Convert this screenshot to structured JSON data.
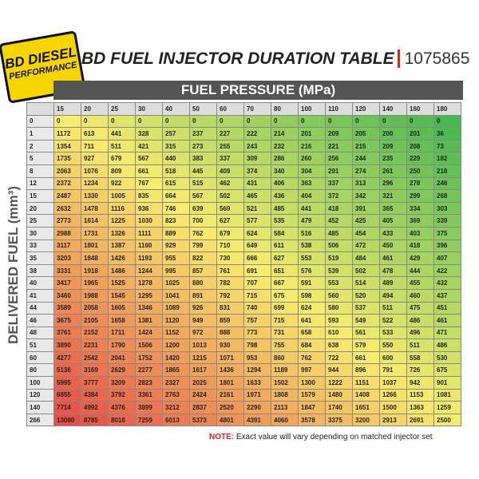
{
  "logo": {
    "line1": "BD DIESEL",
    "line2": "PERFORMANCE"
  },
  "header": {
    "title": "BD FUEL INJECTOR DURATION TABLE",
    "part_number": "1075865"
  },
  "table": {
    "column_title": "FUEL PRESSURE (MPa)",
    "row_title": "DELIVERED FUEL (mm³)",
    "columns": [
      "15",
      "20",
      "25",
      "30",
      "40",
      "50",
      "60",
      "70",
      "80",
      "100",
      "110",
      "120",
      "140",
      "160",
      "180"
    ],
    "row_labels": [
      "0",
      "1",
      "2",
      "5",
      "8",
      "12",
      "15",
      "20",
      "25",
      "30",
      "33",
      "35",
      "38",
      "40",
      "41",
      "44",
      "46",
      "48",
      "51",
      "60",
      "80",
      "100",
      "120",
      "140",
      "266"
    ],
    "rows": [
      [
        "0",
        "0",
        "0",
        "0",
        "0",
        "0",
        "0",
        "0",
        "0",
        "0",
        "0",
        "0",
        "0",
        "0",
        "0"
      ],
      [
        "1172",
        "613",
        "441",
        "328",
        "257",
        "237",
        "227",
        "222",
        "214",
        "201",
        "209",
        "205",
        "200",
        "201",
        "36"
      ],
      [
        "1354",
        "711",
        "511",
        "421",
        "315",
        "273",
        "255",
        "243",
        "232",
        "216",
        "221",
        "215",
        "209",
        "208",
        "73"
      ],
      [
        "1735",
        "927",
        "679",
        "567",
        "440",
        "383",
        "337",
        "309",
        "286",
        "260",
        "256",
        "244",
        "235",
        "229",
        "182"
      ],
      [
        "2063",
        "1076",
        "809",
        "661",
        "518",
        "445",
        "409",
        "374",
        "340",
        "304",
        "291",
        "274",
        "261",
        "250",
        "218"
      ],
      [
        "2372",
        "1234",
        "922",
        "767",
        "615",
        "515",
        "462",
        "431",
        "406",
        "363",
        "337",
        "313",
        "296",
        "278",
        "246"
      ],
      [
        "2487",
        "1330",
        "1005",
        "835",
        "664",
        "567",
        "502",
        "465",
        "436",
        "404",
        "372",
        "342",
        "321",
        "299",
        "268"
      ],
      [
        "2632",
        "1478",
        "1116",
        "936",
        "746",
        "639",
        "569",
        "521",
        "485",
        "441",
        "418",
        "391",
        "365",
        "334",
        "303"
      ],
      [
        "2773",
        "1614",
        "1225",
        "1030",
        "823",
        "700",
        "627",
        "577",
        "535",
        "479",
        "452",
        "425",
        "405",
        "369",
        "339"
      ],
      [
        "2988",
        "1731",
        "1326",
        "1111",
        "889",
        "762",
        "679",
        "624",
        "584",
        "516",
        "485",
        "454",
        "433",
        "403",
        "375"
      ],
      [
        "3117",
        "1801",
        "1387",
        "1160",
        "929",
        "799",
        "710",
        "649",
        "611",
        "538",
        "506",
        "472",
        "450",
        "418",
        "396"
      ],
      [
        "3203",
        "1848",
        "1426",
        "1193",
        "955",
        "822",
        "730",
        "666",
        "627",
        "553",
        "519",
        "484",
        "461",
        "429",
        "407"
      ],
      [
        "3331",
        "1918",
        "1486",
        "1244",
        "995",
        "857",
        "761",
        "691",
        "651",
        "576",
        "539",
        "502",
        "478",
        "444",
        "422"
      ],
      [
        "3417",
        "1965",
        "1525",
        "1278",
        "1025",
        "880",
        "782",
        "707",
        "667",
        "591",
        "553",
        "514",
        "489",
        "455",
        "432"
      ],
      [
        "3460",
        "1988",
        "1545",
        "1295",
        "1041",
        "891",
        "792",
        "715",
        "675",
        "598",
        "560",
        "520",
        "494",
        "460",
        "437"
      ],
      [
        "3589",
        "2058",
        "1605",
        "1346",
        "1089",
        "926",
        "831",
        "740",
        "699",
        "624",
        "580",
        "537",
        "511",
        "475",
        "451"
      ],
      [
        "3675",
        "2105",
        "1658",
        "1381",
        "1120",
        "949",
        "859",
        "757",
        "715",
        "641",
        "593",
        "549",
        "522",
        "486",
        "461"
      ],
      [
        "3761",
        "2152",
        "1711",
        "1424",
        "1152",
        "972",
        "888",
        "773",
        "731",
        "658",
        "610",
        "561",
        "533",
        "496",
        "471"
      ],
      [
        "3890",
        "2231",
        "1790",
        "1506",
        "1200",
        "1013",
        "930",
        "798",
        "755",
        "684",
        "638",
        "579",
        "550",
        "511",
        "486"
      ],
      [
        "4277",
        "2542",
        "2041",
        "1752",
        "1420",
        "1215",
        "1071",
        "953",
        "860",
        "762",
        "722",
        "661",
        "600",
        "558",
        "530"
      ],
      [
        "5136",
        "3169",
        "2629",
        "2277",
        "1865",
        "1617",
        "1436",
        "1294",
        "1189",
        "997",
        "944",
        "896",
        "791",
        "726",
        "675"
      ],
      [
        "5995",
        "3777",
        "3209",
        "2823",
        "2327",
        "2025",
        "1801",
        "1633",
        "1502",
        "1300",
        "1222",
        "1151",
        "1037",
        "942",
        "901"
      ],
      [
        "6855",
        "4384",
        "3792",
        "3361",
        "2763",
        "2424",
        "2161",
        "1971",
        "1808",
        "1579",
        "1480",
        "1408",
        "1266",
        "1153",
        "1081"
      ],
      [
        "7714",
        "4992",
        "4376",
        "3899",
        "3212",
        "2837",
        "2520",
        "2290",
        "2113",
        "1847",
        "1740",
        "1651",
        "1500",
        "1363",
        "1259"
      ],
      [
        "13080",
        "8785",
        "8018",
        "7259",
        "6013",
        "5373",
        "4801",
        "4391",
        "4060",
        "3578",
        "3375",
        "3200",
        "2913",
        "2691",
        "2500"
      ]
    ]
  },
  "note": {
    "label": "NOTE:",
    "text": "Exact value will vary depending on matched injector set"
  }
}
